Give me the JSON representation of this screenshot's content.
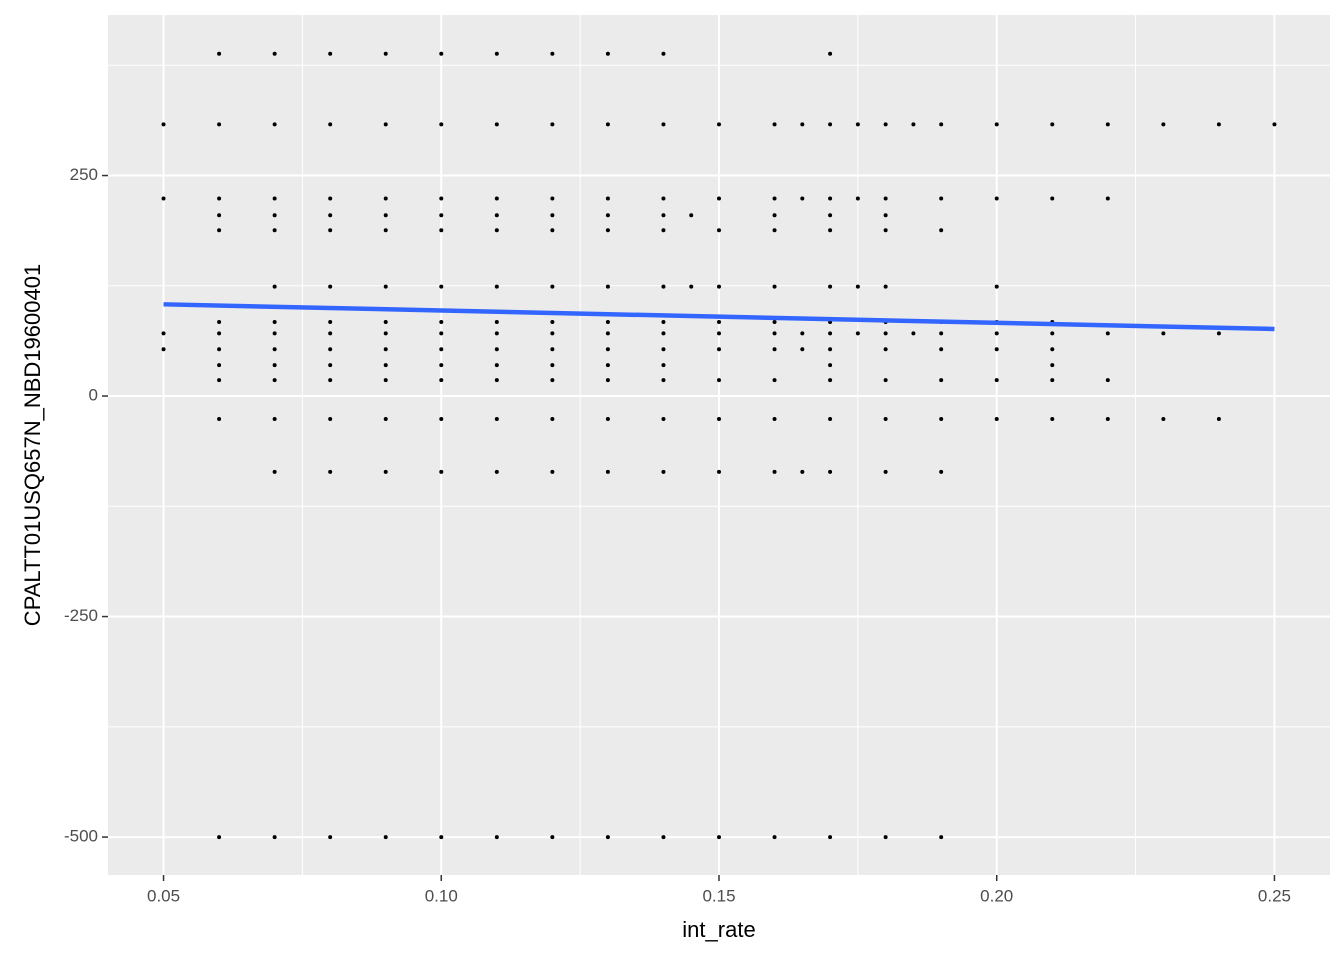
{
  "chart_data": {
    "type": "scatter",
    "x_label": "int_rate",
    "y_label": "CPALTT01USQ657N_NBD19600401",
    "xlim": [
      0.04,
      0.26
    ],
    "ylim": [
      -543,
      432
    ],
    "xticks": [
      0.05,
      {
        "value": 0.1,
        "label": "0.10"
      },
      0.15,
      {
        "value": 0.2,
        "label": "0.20"
      },
      0.25
    ],
    "yticks": [
      -500,
      -250,
      0,
      250
    ],
    "x_minor_ticks": [
      0.075,
      0.125,
      0.175,
      0.225
    ],
    "y_minor_ticks": [
      -375,
      -125,
      125,
      375
    ],
    "grid": true,
    "point_color": "#000000",
    "x": [
      0.05,
      0.05,
      0.05,
      0.05,
      0.06,
      0.06,
      0.06,
      0.06,
      0.06,
      0.06,
      0.06,
      0.06,
      0.06,
      0.06,
      0.06,
      0.06,
      0.07,
      0.07,
      0.07,
      0.07,
      0.07,
      0.07,
      0.07,
      0.07,
      0.07,
      0.07,
      0.07,
      0.07,
      0.07,
      0.07,
      0.08,
      0.08,
      0.08,
      0.08,
      0.08,
      0.08,
      0.08,
      0.08,
      0.08,
      0.08,
      0.08,
      0.08,
      0.08,
      0.08,
      0.09,
      0.09,
      0.09,
      0.09,
      0.09,
      0.09,
      0.09,
      0.09,
      0.09,
      0.09,
      0.09,
      0.09,
      0.09,
      0.09,
      0.1,
      0.1,
      0.1,
      0.1,
      0.1,
      0.1,
      0.1,
      0.1,
      0.1,
      0.1,
      0.1,
      0.1,
      0.1,
      0.1,
      0.11,
      0.11,
      0.11,
      0.11,
      0.11,
      0.11,
      0.11,
      0.11,
      0.11,
      0.11,
      0.11,
      0.11,
      0.11,
      0.11,
      0.12,
      0.12,
      0.12,
      0.12,
      0.12,
      0.12,
      0.12,
      0.12,
      0.12,
      0.12,
      0.12,
      0.12,
      0.12,
      0.12,
      0.13,
      0.13,
      0.13,
      0.13,
      0.13,
      0.13,
      0.13,
      0.13,
      0.13,
      0.13,
      0.13,
      0.13,
      0.13,
      0.13,
      0.14,
      0.14,
      0.14,
      0.14,
      0.14,
      0.14,
      0.14,
      0.14,
      0.14,
      0.14,
      0.14,
      0.14,
      0.14,
      0.14,
      0.15,
      0.15,
      0.15,
      0.15,
      0.15,
      0.15,
      0.15,
      0.15,
      0.15,
      0.15,
      0.15,
      0.16,
      0.16,
      0.16,
      0.16,
      0.16,
      0.16,
      0.16,
      0.16,
      0.16,
      0.16,
      0.16,
      0.16,
      0.17,
      0.17,
      0.17,
      0.17,
      0.17,
      0.17,
      0.17,
      0.17,
      0.17,
      0.17,
      0.17,
      0.17,
      0.17,
      0.17,
      0.18,
      0.18,
      0.18,
      0.18,
      0.18,
      0.18,
      0.18,
      0.18,
      0.18,
      0.18,
      0.18,
      0.18,
      0.19,
      0.19,
      0.19,
      0.19,
      0.19,
      0.19,
      0.19,
      0.19,
      0.19,
      0.19,
      0.2,
      0.2,
      0.2,
      0.2,
      0.2,
      0.2,
      0.2,
      0.2,
      0.21,
      0.21,
      0.21,
      0.21,
      0.21,
      0.21,
      0.21,
      0.21,
      0.22,
      0.22,
      0.22,
      0.22,
      0.22,
      0.23,
      0.23,
      0.23,
      0.24,
      0.24,
      0.24,
      0.25,
      0.165,
      0.165,
      0.165,
      0.165,
      0.165,
      0.175,
      0.175,
      0.175,
      0.175,
      0.145,
      0.145,
      0.185,
      0.185
    ],
    "values": [
      308,
      224,
      71,
      53,
      388,
      308,
      224,
      205,
      188,
      84,
      71,
      53,
      35,
      18,
      -26,
      -500,
      388,
      308,
      224,
      205,
      188,
      124,
      84,
      71,
      53,
      35,
      18,
      -26,
      -86,
      -500,
      388,
      308,
      224,
      205,
      188,
      124,
      84,
      71,
      53,
      35,
      18,
      -26,
      -86,
      -500,
      388,
      308,
      224,
      205,
      188,
      124,
      84,
      71,
      53,
      35,
      18,
      -26,
      -86,
      -500,
      388,
      308,
      224,
      205,
      188,
      124,
      84,
      71,
      53,
      35,
      18,
      -26,
      -86,
      -500,
      388,
      308,
      224,
      205,
      188,
      124,
      84,
      71,
      53,
      35,
      18,
      -26,
      -86,
      -500,
      388,
      308,
      224,
      205,
      188,
      124,
      84,
      71,
      53,
      35,
      18,
      -26,
      -86,
      -500,
      388,
      308,
      224,
      205,
      188,
      124,
      84,
      71,
      53,
      35,
      18,
      -26,
      -86,
      -500,
      388,
      308,
      224,
      205,
      188,
      124,
      84,
      71,
      53,
      35,
      18,
      -26,
      -86,
      -500,
      308,
      224,
      188,
      124,
      84,
      71,
      53,
      18,
      -26,
      -86,
      -500,
      308,
      224,
      205,
      188,
      124,
      84,
      71,
      53,
      18,
      -26,
      -86,
      -500,
      388,
      308,
      224,
      205,
      188,
      124,
      84,
      71,
      53,
      35,
      18,
      -26,
      -86,
      -500,
      308,
      224,
      205,
      188,
      124,
      84,
      71,
      53,
      18,
      -26,
      -86,
      -500,
      308,
      224,
      188,
      84,
      71,
      53,
      18,
      -26,
      -86,
      -500,
      308,
      224,
      124,
      84,
      71,
      53,
      18,
      -26,
      308,
      224,
      84,
      71,
      53,
      35,
      18,
      -26,
      308,
      224,
      71,
      18,
      -26,
      308,
      71,
      -26,
      308,
      71,
      -26,
      308,
      308,
      224,
      71,
      53,
      -86,
      308,
      224,
      124,
      71,
      205,
      124,
      308,
      71
    ],
    "trend": {
      "x": [
        0.05,
        0.25
      ],
      "values": [
        104,
        76
      ],
      "color": "#3366ff"
    }
  }
}
